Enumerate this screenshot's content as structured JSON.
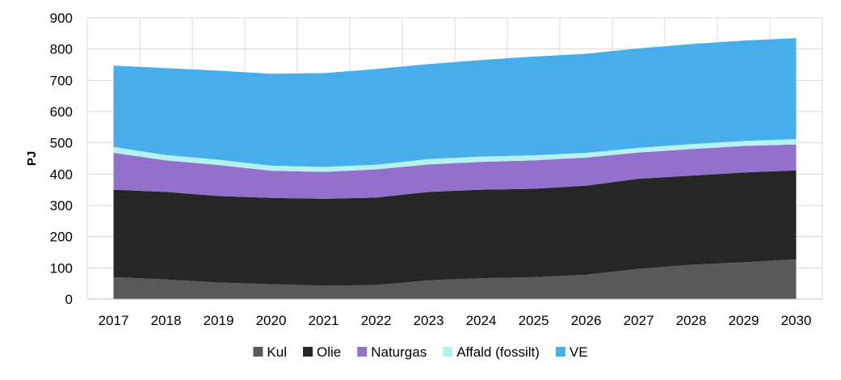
{
  "chart_data": {
    "type": "area",
    "stacked": true,
    "title": "",
    "xlabel": "",
    "ylabel": "PJ",
    "ylim": [
      0,
      900
    ],
    "yticks": [
      "0",
      "100",
      "200",
      "300",
      "400",
      "500",
      "600",
      "700",
      "800",
      "900"
    ],
    "categories": [
      "2017",
      "2018",
      "2019",
      "2020",
      "2021",
      "2022",
      "2023",
      "2024",
      "2025",
      "2026",
      "2027",
      "2028",
      "2029",
      "2030"
    ],
    "grid": true,
    "legend_position": "bottom",
    "series": [
      {
        "name": "Kul",
        "color": "#595959",
        "values": [
          70,
          63,
          53,
          48,
          43,
          45,
          60,
          67,
          70,
          78,
          97,
          110,
          118,
          127
        ]
      },
      {
        "name": "Olie",
        "color": "#262626",
        "values": [
          280,
          280,
          277,
          276,
          278,
          280,
          283,
          283,
          283,
          285,
          288,
          285,
          287,
          285
        ]
      },
      {
        "name": "Naturgas",
        "color": "#9370cc",
        "values": [
          118,
          101,
          99,
          87,
          86,
          90,
          88,
          89,
          91,
          90,
          84,
          85,
          85,
          83
        ]
      },
      {
        "name": "Affald (fossilt)",
        "color": "#b3f2ee",
        "values": [
          19,
          17,
          17,
          16,
          16,
          15,
          17,
          17,
          16,
          15,
          15,
          16,
          16,
          17
        ]
      },
      {
        "name": "VE",
        "color": "#47aeeb",
        "values": [
          260,
          278,
          285,
          294,
          300,
          306,
          304,
          309,
          316,
          317,
          318,
          320,
          321,
          323
        ]
      }
    ]
  }
}
